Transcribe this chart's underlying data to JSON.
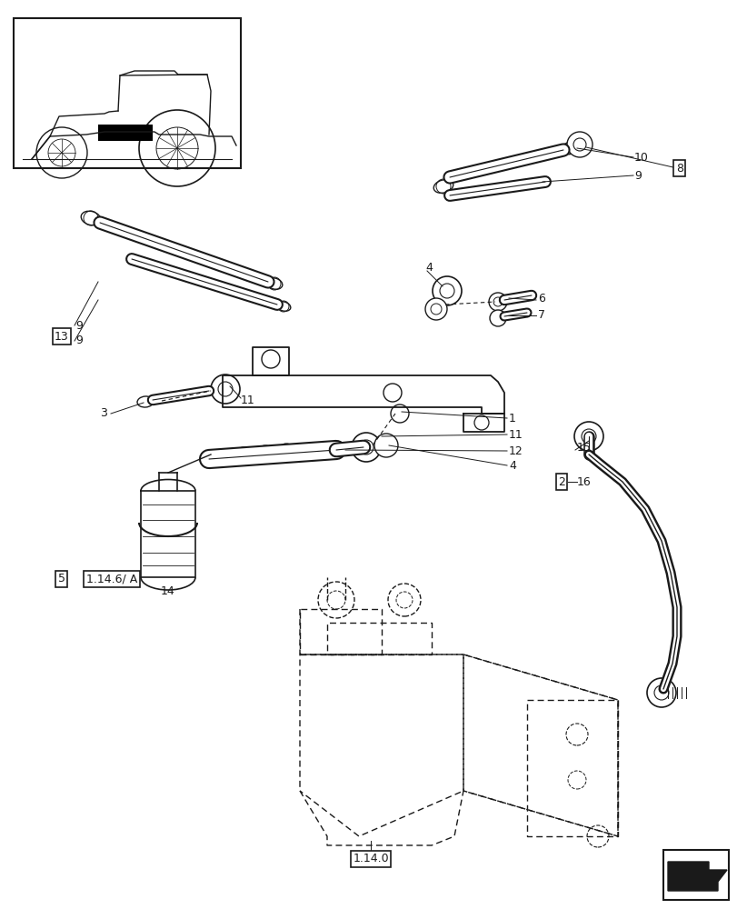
{
  "bg_color": "#ffffff",
  "line_color": "#1a1a1a",
  "fig_width": 8.12,
  "fig_height": 10.0,
  "dpi": 100
}
